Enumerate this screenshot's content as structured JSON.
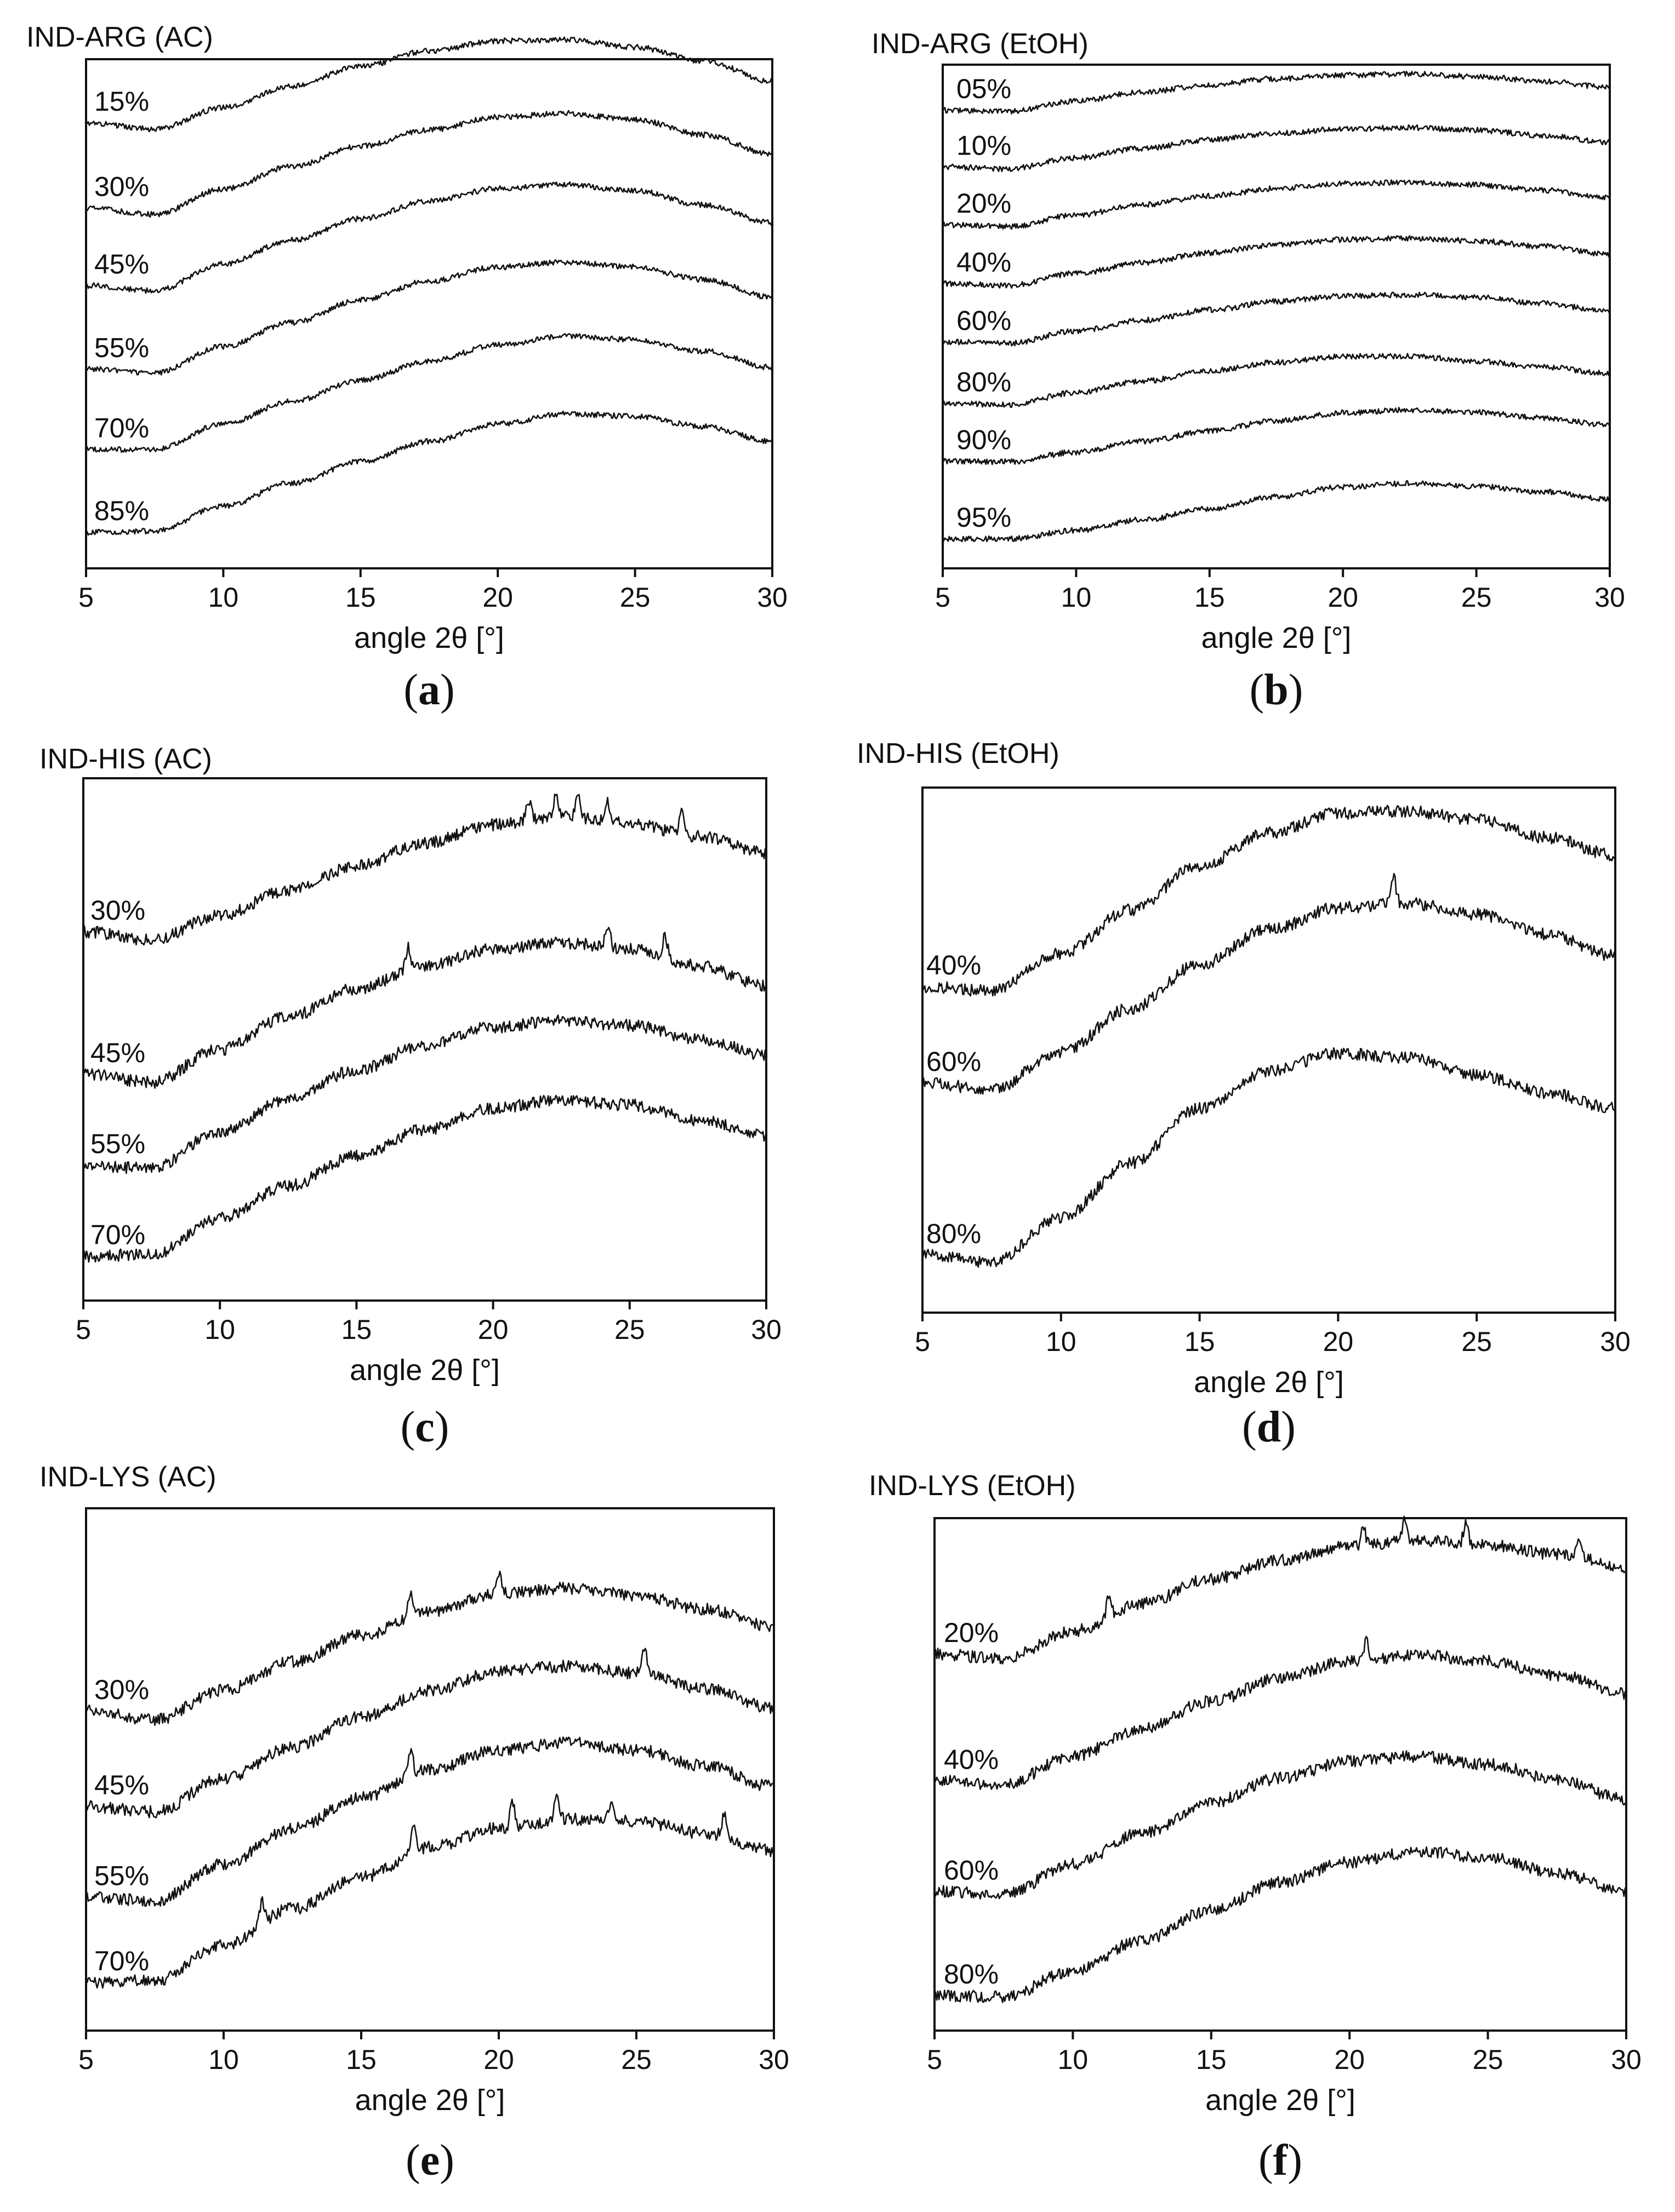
{
  "figure": "X-ray powder diffraction patterns (amorphous halos)",
  "chart_data": [
    {
      "type": "line",
      "panel": "a",
      "title": "IND-ARG (AC)",
      "xlabel": "angle 2θ [°]",
      "xlim": [
        5,
        30
      ],
      "xticks": [
        5,
        10,
        15,
        20,
        25,
        30
      ],
      "x": [
        5,
        7.5,
        10,
        12.5,
        15,
        17.5,
        20,
        22.5,
        25,
        27.5,
        30
      ],
      "series": [
        {
          "name": "15%",
          "values": [
            0.33,
            0.28,
            0.45,
            0.62,
            0.78,
            0.9,
            0.98,
            0.99,
            0.93,
            0.82,
            0.66
          ],
          "sharp_peaks": []
        },
        {
          "name": "30%",
          "values": [
            0.25,
            0.2,
            0.4,
            0.58,
            0.74,
            0.87,
            0.97,
            1.0,
            0.95,
            0.83,
            0.68
          ],
          "sharp_peaks": []
        },
        {
          "name": "45%",
          "values": [
            0.2,
            0.16,
            0.37,
            0.56,
            0.73,
            0.87,
            0.97,
            1.0,
            0.95,
            0.84,
            0.7
          ],
          "sharp_peaks": []
        },
        {
          "name": "55%",
          "values": [
            0.15,
            0.12,
            0.33,
            0.52,
            0.7,
            0.85,
            0.96,
            1.0,
            0.96,
            0.86,
            0.72
          ],
          "sharp_peaks": []
        },
        {
          "name": "70%",
          "values": [
            0.1,
            0.1,
            0.3,
            0.48,
            0.65,
            0.8,
            0.93,
            1.0,
            0.97,
            0.88,
            0.75
          ],
          "sharp_peaks": []
        },
        {
          "name": "85%",
          "values": [
            0.06,
            0.07,
            0.27,
            0.45,
            0.62,
            0.78,
            0.92,
            1.0,
            0.98,
            0.9,
            0.78
          ],
          "sharp_peaks": []
        }
      ]
    },
    {
      "type": "line",
      "panel": "b",
      "title": "IND-ARG (EtOH)",
      "xlabel": "angle 2θ [°]",
      "xlim": [
        5,
        30
      ],
      "xticks": [
        5,
        10,
        15,
        20,
        25,
        30
      ],
      "x": [
        5,
        7.5,
        10,
        12.5,
        15,
        17.5,
        20,
        22.5,
        25,
        27.5,
        30
      ],
      "series": [
        {
          "name": "05%",
          "values": [
            0.4,
            0.38,
            0.55,
            0.7,
            0.82,
            0.92,
            0.98,
            1.0,
            0.96,
            0.88,
            0.78
          ],
          "sharp_peaks": []
        },
        {
          "name": "10%",
          "values": [
            0.35,
            0.32,
            0.5,
            0.66,
            0.8,
            0.91,
            0.98,
            1.0,
            0.96,
            0.87,
            0.76
          ],
          "sharp_peaks": []
        },
        {
          "name": "20%",
          "values": [
            0.3,
            0.27,
            0.46,
            0.63,
            0.78,
            0.9,
            0.98,
            1.0,
            0.96,
            0.87,
            0.75
          ],
          "sharp_peaks": []
        },
        {
          "name": "40%",
          "values": [
            0.25,
            0.22,
            0.42,
            0.6,
            0.76,
            0.89,
            0.98,
            1.0,
            0.96,
            0.87,
            0.74
          ],
          "sharp_peaks": []
        },
        {
          "name": "60%",
          "values": [
            0.22,
            0.2,
            0.4,
            0.58,
            0.75,
            0.89,
            0.98,
            1.0,
            0.96,
            0.86,
            0.72
          ],
          "sharp_peaks": []
        },
        {
          "name": "80%",
          "values": [
            0.2,
            0.18,
            0.38,
            0.57,
            0.74,
            0.88,
            0.98,
            0.98,
            0.9,
            0.8,
            0.7
          ],
          "sharp_peaks": []
        },
        {
          "name": "90%",
          "values": [
            0.15,
            0.14,
            0.3,
            0.48,
            0.65,
            0.82,
            0.95,
            1.0,
            0.96,
            0.87,
            0.75
          ],
          "sharp_peaks": []
        },
        {
          "name": "95%",
          "values": [
            0.08,
            0.08,
            0.22,
            0.4,
            0.58,
            0.78,
            0.94,
            1.0,
            0.95,
            0.86,
            0.74
          ],
          "sharp_peaks": []
        }
      ]
    },
    {
      "type": "line",
      "panel": "c",
      "title": "IND-HIS (AC)",
      "xlabel": "angle 2θ [°]",
      "xlim": [
        5,
        30
      ],
      "xticks": [
        5,
        10,
        15,
        20,
        25,
        30
      ],
      "x": [
        5,
        7.5,
        10,
        12.5,
        15,
        17.5,
        20,
        22.5,
        25,
        27.5,
        30
      ],
      "series": [
        {
          "name": "30%",
          "values": [
            0.3,
            0.25,
            0.4,
            0.55,
            0.7,
            0.84,
            0.95,
            1.0,
            0.96,
            0.88,
            0.78
          ],
          "sharp_peaks": [
            21.3,
            22.3,
            23.1,
            24.2,
            26.9
          ]
        },
        {
          "name": "45%",
          "values": [
            0.2,
            0.15,
            0.35,
            0.55,
            0.72,
            0.86,
            0.96,
            1.0,
            0.96,
            0.86,
            0.74
          ],
          "sharp_peaks": [
            16.9,
            24.2,
            26.3
          ]
        },
        {
          "name": "55%",
          "values": [
            0.12,
            0.1,
            0.32,
            0.52,
            0.7,
            0.85,
            0.96,
            1.0,
            0.97,
            0.89,
            0.79
          ],
          "sharp_peaks": []
        },
        {
          "name": "70%",
          "values": [
            0.05,
            0.06,
            0.28,
            0.48,
            0.66,
            0.82,
            0.95,
            1.0,
            0.97,
            0.88,
            0.78
          ],
          "sharp_peaks": []
        }
      ]
    },
    {
      "type": "line",
      "panel": "d",
      "title": "IND-HIS (EtOH)",
      "xlabel": "angle 2θ [°]",
      "xlim": [
        5,
        30
      ],
      "xticks": [
        5,
        10,
        15,
        20,
        25,
        30
      ],
      "x": [
        5,
        7.5,
        10,
        12.5,
        15,
        17.5,
        20,
        22.5,
        25,
        27.5,
        30
      ],
      "series": [
        {
          "name": "40%",
          "values": [
            0.2,
            0.18,
            0.35,
            0.55,
            0.75,
            0.9,
            0.99,
            1.0,
            0.96,
            0.88,
            0.8
          ],
          "sharp_peaks": []
        },
        {
          "name": "60%",
          "values": [
            0.18,
            0.15,
            0.32,
            0.52,
            0.72,
            0.88,
            0.98,
            1.0,
            0.95,
            0.86,
            0.76
          ],
          "sharp_peaks": [
            22.0
          ]
        },
        {
          "name": "80%",
          "values": [
            0.08,
            0.05,
            0.25,
            0.5,
            0.75,
            0.92,
            1.0,
            0.98,
            0.9,
            0.82,
            0.75
          ],
          "sharp_peaks": []
        }
      ]
    },
    {
      "type": "line",
      "panel": "e",
      "title": "IND-LYS (AC)",
      "xlabel": "angle 2θ [°]",
      "xlim": [
        5,
        30
      ],
      "xticks": [
        5,
        10,
        15,
        20,
        25,
        30
      ],
      "x": [
        5,
        7.5,
        10,
        12.5,
        15,
        17.5,
        20,
        22.5,
        25,
        27.5,
        30
      ],
      "series": [
        {
          "name": "30%",
          "values": [
            0.3,
            0.25,
            0.42,
            0.58,
            0.73,
            0.87,
            0.97,
            1.0,
            0.96,
            0.88,
            0.78
          ],
          "sharp_peaks": [
            16.8,
            20.0
          ]
        },
        {
          "name": "45%",
          "values": [
            0.2,
            0.17,
            0.36,
            0.54,
            0.71,
            0.86,
            0.97,
            1.0,
            0.96,
            0.87,
            0.76
          ],
          "sharp_peaks": [
            25.3
          ]
        },
        {
          "name": "55%",
          "values": [
            0.12,
            0.1,
            0.31,
            0.51,
            0.69,
            0.85,
            0.96,
            1.0,
            0.96,
            0.87,
            0.75
          ],
          "sharp_peaks": [
            16.8
          ]
        },
        {
          "name": "70%",
          "values": [
            0.05,
            0.06,
            0.26,
            0.47,
            0.65,
            0.82,
            0.93,
            0.98,
            0.97,
            0.9,
            0.8
          ],
          "sharp_peaks": [
            11.4,
            16.9,
            20.5,
            22.1,
            24.1,
            28.2
          ]
        }
      ]
    },
    {
      "type": "line",
      "panel": "f",
      "title": "IND-LYS (EtOH)",
      "xlabel": "angle 2θ [°]",
      "xlim": [
        5,
        30
      ],
      "xticks": [
        5,
        10,
        15,
        20,
        25,
        30
      ],
      "x": [
        5,
        7.5,
        10,
        12.5,
        15,
        17.5,
        20,
        22.5,
        25,
        27.5,
        30
      ],
      "series": [
        {
          "name": "20%",
          "values": [
            0.25,
            0.22,
            0.4,
            0.58,
            0.74,
            0.86,
            0.95,
            0.99,
            0.96,
            0.9,
            0.82
          ],
          "sharp_peaks": [
            11.3,
            20.5,
            22.0,
            24.2,
            28.3
          ]
        },
        {
          "name": "40%",
          "values": [
            0.18,
            0.16,
            0.34,
            0.52,
            0.7,
            0.85,
            0.96,
            1.0,
            0.96,
            0.87,
            0.75
          ],
          "sharp_peaks": [
            20.6
          ]
        },
        {
          "name": "60%",
          "values": [
            0.12,
            0.1,
            0.3,
            0.5,
            0.7,
            0.86,
            0.97,
            1.0,
            0.95,
            0.85,
            0.72
          ],
          "sharp_peaks": []
        },
        {
          "name": "80%",
          "values": [
            0.06,
            0.05,
            0.22,
            0.42,
            0.62,
            0.8,
            0.93,
            1.0,
            0.96,
            0.86,
            0.74
          ],
          "sharp_peaks": []
        }
      ]
    }
  ],
  "captions": {
    "a": {
      "open": "(",
      "letter": "a",
      "close": ")"
    },
    "b": {
      "open": "(",
      "letter": "b",
      "close": ")"
    },
    "c": {
      "open": "(",
      "letter": "c",
      "close": ")"
    },
    "d": {
      "open": "(",
      "letter": "d",
      "close": ")"
    },
    "e": {
      "open": "(",
      "letter": "e",
      "close": ")"
    },
    "f": {
      "open": "(",
      "letter": "f",
      "close": ")"
    }
  }
}
